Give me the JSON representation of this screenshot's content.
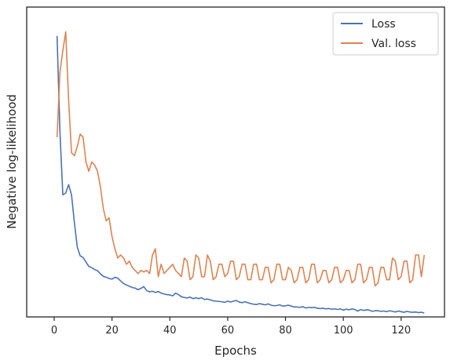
{
  "chart_data": {
    "type": "line",
    "title": "",
    "xlabel": "Epochs",
    "ylabel": "Negative log-likelihood",
    "xlim": [
      -9.5,
      135
    ],
    "ylim": [
      0,
      100
    ],
    "x_ticks": [
      0,
      20,
      40,
      60,
      80,
      100,
      120
    ],
    "y_ticks": [],
    "grid": false,
    "legend_position": "top-right",
    "series": [
      {
        "name": "Loss",
        "color": "#4c72b0",
        "x_start": 1,
        "values": [
          90.7,
          59.7,
          39.4,
          40,
          42.7,
          39.4,
          30.4,
          22.5,
          19.7,
          19.2,
          17.7,
          16.3,
          15.9,
          15.3,
          14.9,
          13.9,
          13.1,
          12.8,
          12.4,
          12.2,
          12.8,
          12.5,
          11.6,
          10.8,
          10.3,
          9.9,
          9.5,
          9.3,
          8.8,
          9.2,
          9.8,
          8.5,
          8.1,
          8.3,
          7.9,
          8.2,
          7.7,
          7.4,
          7.2,
          7.1,
          6.8,
          7.7,
          7.2,
          6.5,
          6.3,
          6.1,
          6.4,
          5.9,
          6.2,
          5.9,
          6.2,
          5.6,
          5.8,
          5.5,
          5.2,
          5.1,
          5.0,
          4.9,
          4.7,
          5.1,
          4.8,
          5.1,
          5.3,
          4.8,
          4.6,
          4.9,
          4.6,
          4.3,
          4.1,
          4.0,
          4.3,
          4.1,
          3.9,
          4.2,
          3.8,
          3.6,
          3.7,
          3.9,
          3.5,
          3.6,
          3.8,
          3.5,
          3.2,
          3.2,
          3.1,
          3.3,
          2.9,
          3.1,
          3.0,
          3.1,
          2.8,
          2.7,
          2.8,
          2.6,
          2.7,
          2.5,
          2.6,
          2.4,
          2.6,
          2.2,
          2.5,
          2.3,
          2.6,
          2.4,
          1.9,
          2.4,
          2.1,
          2.3,
          2.2,
          1.8,
          2.0,
          2.0,
          1.8,
          1.9,
          1.7,
          2.0,
          1.8,
          1.6,
          1.9,
          1.7,
          1.5,
          1.8,
          1.6,
          1.5,
          1.6,
          1.4,
          1.5,
          1.3
        ]
      },
      {
        "name": "Val. loss",
        "color": "#dd8452",
        "x_start": 1,
        "values": [
          58,
          79,
          86,
          92,
          70,
          53,
          52,
          55,
          59,
          58,
          50,
          47,
          50,
          49,
          47,
          42,
          35,
          31,
          32,
          26,
          22,
          19,
          20,
          19,
          17,
          18,
          16,
          15,
          14,
          15,
          14.5,
          15,
          14,
          20,
          22,
          13,
          17,
          14,
          15,
          16,
          17,
          15,
          14,
          13,
          19,
          18,
          12,
          13,
          20,
          19,
          13,
          13,
          20,
          18,
          12,
          13,
          17,
          17,
          13,
          14,
          18,
          18,
          12,
          13,
          17,
          17,
          12,
          12,
          17,
          17,
          12,
          12,
          16,
          16,
          11,
          12,
          17,
          17,
          12,
          12,
          16,
          15,
          11,
          12,
          16,
          16,
          11,
          12,
          17,
          17,
          11,
          12,
          15,
          15,
          11,
          12,
          16,
          16,
          11,
          12,
          15,
          15,
          11,
          12,
          17,
          17,
          11,
          12,
          16,
          16,
          10,
          11,
          16,
          16,
          12,
          12,
          19,
          18,
          12,
          13,
          18,
          18,
          11,
          12,
          20,
          20,
          13,
          20
        ]
      }
    ]
  }
}
